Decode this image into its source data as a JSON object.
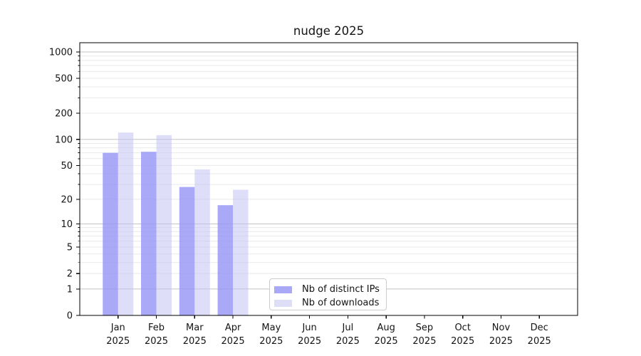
{
  "title": "nudge 2025",
  "chart_data": {
    "type": "bar",
    "title": "nudge 2025",
    "year": "2025",
    "categories": [
      "Jan",
      "Feb",
      "Mar",
      "Apr",
      "May",
      "Jun",
      "Jul",
      "Aug",
      "Sep",
      "Oct",
      "Nov",
      "Dec"
    ],
    "series": [
      {
        "name": "Nb of distinct IPs",
        "color": "#9696f6d1",
        "values": [
          70,
          72,
          28,
          17,
          0,
          0,
          0,
          0,
          0,
          0,
          0,
          0
        ]
      },
      {
        "name": "Nb of downloads",
        "color": "#c2c2f48a",
        "values": [
          120,
          112,
          45,
          26,
          0,
          0,
          0,
          0,
          0,
          0,
          0,
          0
        ]
      }
    ],
    "yscale": "log10(value+1)",
    "yticks": [
      0,
      1,
      2,
      5,
      10,
      20,
      50,
      100,
      200,
      500,
      1000
    ],
    "ylim": [
      0,
      1280
    ],
    "grid": {
      "major_at": [
        1,
        10,
        100,
        1000
      ],
      "minor_at_multiples": [
        2,
        3,
        4,
        5,
        6,
        7,
        8,
        9
      ],
      "major_color": "#c3c3c3",
      "minor_color": "#e9e9e9"
    },
    "legend_position": "inside lower-center",
    "axis_color": "#000000",
    "text_color": "#141414"
  }
}
